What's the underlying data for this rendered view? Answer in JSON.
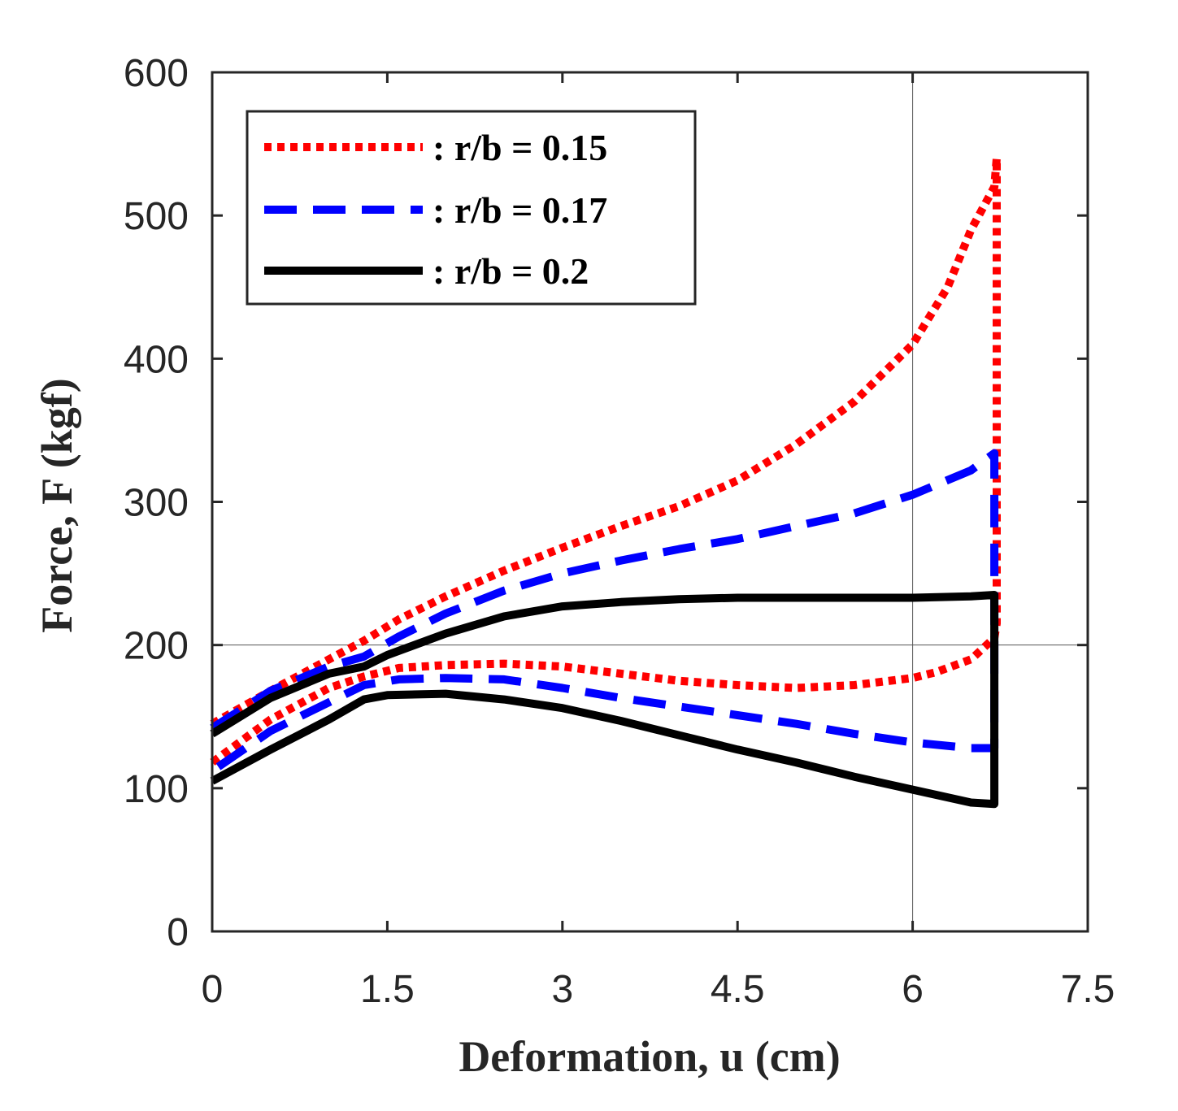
{
  "chart_data": {
    "type": "line",
    "title": "",
    "xlabel": "Deformation, u (cm)",
    "ylabel": "Force, F (kgf)",
    "xlim": [
      0,
      7.5
    ],
    "ylim": [
      0,
      600
    ],
    "xticks": [
      "0",
      "1.5",
      "3",
      "4.5",
      "6",
      "7.5"
    ],
    "yticks": [
      "0",
      "100",
      "200",
      "300",
      "400",
      "500",
      "600"
    ],
    "reference_lines": {
      "vertical_x": 6,
      "horizontal_y": 200
    },
    "legend_position": "top-left",
    "series": [
      {
        "name": ": r/b = 0.15",
        "color": "#ff0000",
        "style": "dotted",
        "x": [
          0,
          0.5,
          1.0,
          1.3,
          1.6,
          2.0,
          2.5,
          3.0,
          3.5,
          4.0,
          4.5,
          5.0,
          5.5,
          6.0,
          6.3,
          6.5,
          6.7,
          6.72,
          6.72,
          6.7,
          6.5,
          6.2,
          6.0,
          5.5,
          5.0,
          4.5,
          4.0,
          3.5,
          3.0,
          2.5,
          2.0,
          1.6,
          1.3,
          1.0,
          0.5,
          0
        ],
        "y": [
          145,
          168,
          190,
          203,
          218,
          234,
          252,
          268,
          283,
          297,
          315,
          340,
          370,
          410,
          450,
          490,
          520,
          540,
          215,
          205,
          190,
          181,
          177,
          172,
          170,
          172,
          175,
          180,
          185,
          187,
          186,
          184,
          178,
          170,
          148,
          118
        ]
      },
      {
        "name": ": r/b = 0.17",
        "color": "#0000ff",
        "style": "dashed",
        "x": [
          0,
          0.5,
          1.0,
          1.3,
          1.6,
          2.0,
          2.5,
          3.0,
          3.5,
          4.0,
          4.5,
          5.0,
          5.5,
          6.0,
          6.5,
          6.7,
          6.7,
          6.5,
          6.0,
          5.5,
          5.0,
          4.5,
          4.0,
          3.5,
          3.0,
          2.5,
          2.0,
          1.6,
          1.3,
          1.0,
          0.5,
          0
        ],
        "y": [
          142,
          168,
          185,
          192,
          206,
          222,
          238,
          250,
          259,
          267,
          274,
          283,
          292,
          305,
          322,
          334,
          128,
          128,
          132,
          138,
          145,
          151,
          157,
          163,
          170,
          176,
          177,
          176,
          172,
          160,
          140,
          112
        ]
      },
      {
        "name": ": r/b = 0.2",
        "color": "#000000",
        "style": "solid",
        "x": [
          0,
          0.5,
          1.0,
          1.3,
          1.5,
          2.0,
          2.5,
          3.0,
          3.5,
          4.0,
          4.5,
          5.0,
          5.5,
          6.0,
          6.5,
          6.7,
          6.7,
          6.5,
          6.0,
          5.5,
          5.0,
          4.5,
          4.0,
          3.5,
          3.0,
          2.5,
          2.0,
          1.5,
          1.3,
          1.0,
          0.5,
          0
        ],
        "y": [
          138,
          163,
          180,
          185,
          193,
          208,
          220,
          227,
          230,
          232,
          233,
          233,
          233,
          233,
          234,
          235,
          89,
          90,
          99,
          108,
          118,
          127,
          137,
          147,
          156,
          162,
          166,
          165,
          162,
          148,
          127,
          105
        ]
      }
    ]
  }
}
